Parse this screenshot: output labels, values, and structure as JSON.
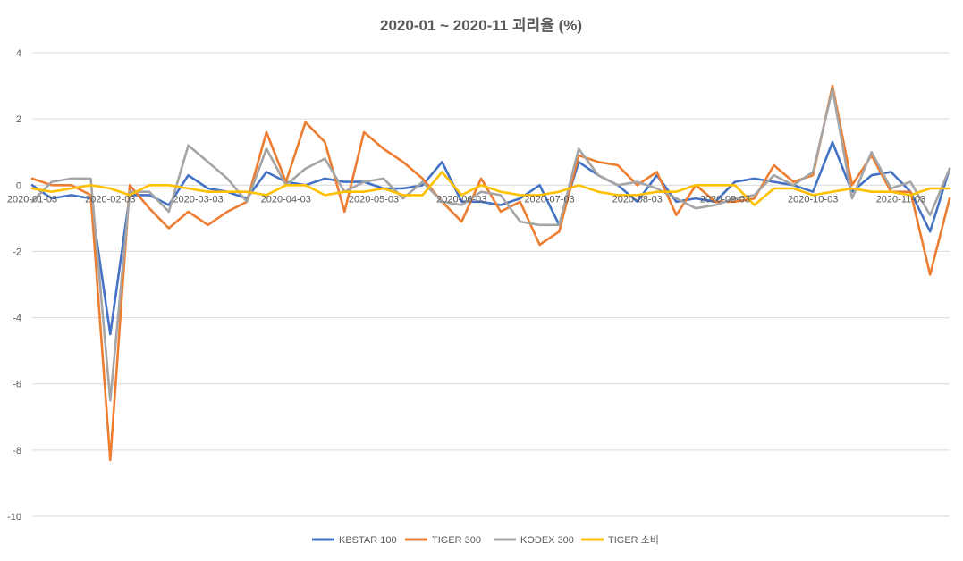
{
  "chart_data": {
    "type": "line",
    "title": "2020-01 ~ 2020-11 괴리율 (%)",
    "xlabel": "",
    "ylabel": "",
    "ylim": [
      -10,
      4
    ],
    "yticks": [
      4,
      2,
      0,
      -2,
      -4,
      -6,
      -8,
      -10
    ],
    "grid": true,
    "legend_position": "bottom",
    "x_tick_labels": [
      {
        "label": "2020-01-03",
        "index": 0
      },
      {
        "label": "2020-02-03",
        "index": 4
      },
      {
        "label": "2020-03-03",
        "index": 8.5
      },
      {
        "label": "2020-04-03",
        "index": 13
      },
      {
        "label": "2020-05-03",
        "index": 17.5
      },
      {
        "label": "2020-06-03",
        "index": 22
      },
      {
        "label": "2020-07-03",
        "index": 26.5
      },
      {
        "label": "2020-08-03",
        "index": 31
      },
      {
        "label": "2020-09-03",
        "index": 35.5
      },
      {
        "label": "2020-10-03",
        "index": 40
      },
      {
        "label": "2020-11-03",
        "index": 44.5
      }
    ],
    "series": [
      {
        "name": "KBSTAR 100",
        "color": "#4472C4",
        "values": [
          0.0,
          -0.4,
          -0.3,
          -0.4,
          -4.5,
          -0.3,
          -0.3,
          -0.6,
          0.3,
          -0.1,
          -0.2,
          -0.4,
          0.4,
          0.1,
          0.0,
          0.2,
          0.1,
          0.1,
          -0.1,
          -0.1,
          0.0,
          0.7,
          -0.5,
          -0.5,
          -0.6,
          -0.4,
          0.0,
          -1.2,
          0.7,
          0.3,
          0.0,
          -0.5,
          0.3,
          -0.5,
          -0.4,
          -0.5,
          0.1,
          0.2,
          0.1,
          0.0,
          -0.2,
          1.3,
          -0.2,
          0.3,
          0.4,
          -0.2,
          -1.4,
          0.5
        ]
      },
      {
        "name": "TIGER 300",
        "color": "#ED7D31",
        "values": [
          0.2,
          0.0,
          0.0,
          -0.3,
          -8.3,
          0.0,
          -0.7,
          -1.3,
          -0.8,
          -1.2,
          -0.8,
          -0.5,
          1.6,
          0.1,
          1.9,
          1.3,
          -0.8,
          1.6,
          1.1,
          0.7,
          0.2,
          -0.5,
          -1.1,
          0.2,
          -0.8,
          -0.5,
          -1.8,
          -1.4,
          0.9,
          0.7,
          0.6,
          0.0,
          0.4,
          -0.9,
          0.0,
          -0.5,
          -0.5,
          -0.4,
          0.6,
          0.1,
          0.3,
          3.0,
          0.0,
          0.9,
          -0.2,
          -0.2,
          -2.7,
          -0.4
        ]
      },
      {
        "name": "KODEX 300",
        "color": "#A5A5A5",
        "values": [
          -0.5,
          0.1,
          0.2,
          0.2,
          -6.5,
          -0.2,
          -0.2,
          -0.8,
          1.2,
          0.7,
          0.2,
          -0.5,
          1.1,
          0.0,
          0.5,
          0.8,
          -0.2,
          0.1,
          0.2,
          -0.4,
          0.1,
          -0.5,
          -0.6,
          -0.2,
          -0.3,
          -1.1,
          -1.2,
          -1.2,
          1.1,
          0.3,
          0.0,
          0.1,
          -0.1,
          -0.4,
          -0.7,
          -0.6,
          -0.4,
          -0.3,
          0.3,
          0.0,
          0.4,
          2.9,
          -0.4,
          1.0,
          -0.1,
          0.1,
          -0.9,
          0.5
        ]
      },
      {
        "name": "TIGER 소비",
        "color": "#FFC000",
        "values": [
          -0.1,
          -0.2,
          -0.1,
          0.0,
          -0.1,
          -0.3,
          0.0,
          0.0,
          -0.1,
          -0.2,
          -0.2,
          -0.2,
          -0.3,
          0.0,
          0.0,
          -0.3,
          -0.2,
          -0.2,
          -0.1,
          -0.3,
          -0.3,
          0.4,
          -0.3,
          0.0,
          -0.2,
          -0.3,
          -0.3,
          -0.2,
          0.0,
          -0.2,
          -0.3,
          -0.3,
          -0.2,
          -0.2,
          0.0,
          0.0,
          0.0,
          -0.6,
          -0.1,
          -0.1,
          -0.3,
          -0.2,
          -0.1,
          -0.2,
          -0.2,
          -0.3,
          -0.1,
          -0.1
        ]
      }
    ]
  }
}
